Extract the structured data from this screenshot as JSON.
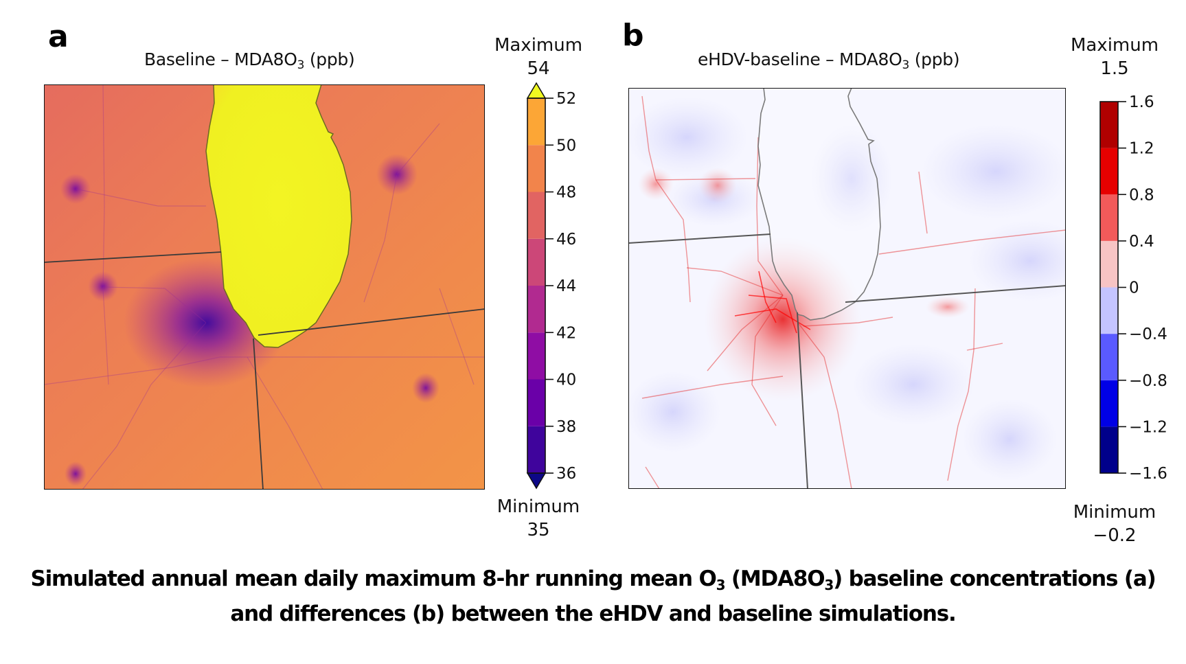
{
  "caption": {
    "line1_a": "Simulated annual mean daily maximum 8-hr running mean O",
    "line1_sub1": "3",
    "line1_b": " (MDA8O",
    "line1_sub2": "3",
    "line1_c": ") baseline concentrations (a)",
    "line2": "and differences (b) between the eHDV and baseline simulations."
  },
  "chart_data": [
    {
      "type": "heatmap",
      "panel": "a",
      "title_main": "Baseline – MDA8O",
      "title_sub": "3",
      "title_unit": " (ppb)",
      "title": "Baseline – MDA8O3 (ppb)",
      "colorbar": {
        "ticks": [
          52,
          50,
          48,
          46,
          44,
          42,
          40,
          38,
          36
        ],
        "tick_labels": [
          "52",
          "50",
          "48",
          "46",
          "44",
          "42",
          "40",
          "38",
          "36"
        ],
        "range": [
          36,
          52
        ],
        "extend": "both",
        "colors": [
          "#0d0887",
          "#3f049c",
          "#6a00a8",
          "#8f0da4",
          "#b12a90",
          "#cc4778",
          "#e16462",
          "#f2844b",
          "#fca636",
          "#f9d81f",
          "#f0f921"
        ],
        "max_label": "Maximum",
        "max_value": "54",
        "min_label": "Minimum",
        "min_value": "35"
      },
      "map_summary": {
        "lake_michigan_value_approx": 53,
        "background_value_approx": 47,
        "chicago_urban_value_approx": 36
      }
    },
    {
      "type": "heatmap",
      "panel": "b",
      "title_main": "eHDV-baseline – MDA8O",
      "title_sub": "3",
      "title_unit": " (ppb)",
      "title": "eHDV-baseline – MDA8O3 (ppb)",
      "colorbar": {
        "ticks": [
          1.6,
          1.2,
          0.8,
          0.4,
          0,
          -0.4,
          -0.8,
          -1.2,
          -1.6
        ],
        "tick_labels": [
          "1.6",
          "1.2",
          "0.8",
          "0.4",
          "0",
          "−0.4",
          "−0.8",
          "−1.2",
          "−1.6"
        ],
        "range": [
          -1.6,
          1.6
        ],
        "extend": "neither",
        "colors": [
          "#00008b",
          "#0000e6",
          "#5a5aff",
          "#c4c4ff",
          "#f7c4c4",
          "#f25a5a",
          "#e60000",
          "#b00000"
        ],
        "max_label": "Maximum",
        "max_value": "1.5",
        "min_label": "Minimum",
        "min_value": "−0.2"
      },
      "map_summary": {
        "chicago_urban_value_approx": 1.2,
        "background_value_approx": -0.1,
        "lake_michigan_value_approx": 0.1
      }
    }
  ]
}
